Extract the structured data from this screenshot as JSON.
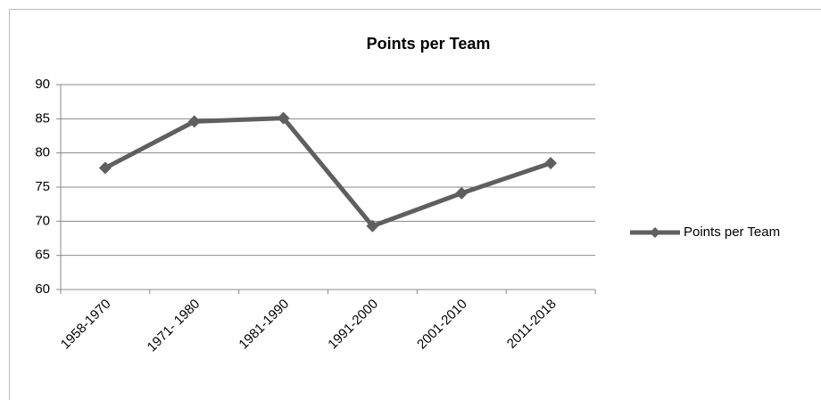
{
  "chart_data": {
    "type": "line",
    "title": "Points per Team",
    "categories": [
      "1958-1970",
      "1971- 1980",
      "1981-1990",
      "1991-2000",
      "2001-2010",
      "2011-2018"
    ],
    "series": [
      {
        "name": "Points per Team",
        "color": "#5f5f5f",
        "values": [
          77.8,
          84.6,
          85.1,
          69.3,
          74.1,
          78.5
        ]
      }
    ],
    "ylim": [
      60,
      90
    ],
    "yticks": [
      60,
      65,
      70,
      75,
      80,
      85,
      90
    ],
    "grid": true,
    "legend": "right"
  }
}
